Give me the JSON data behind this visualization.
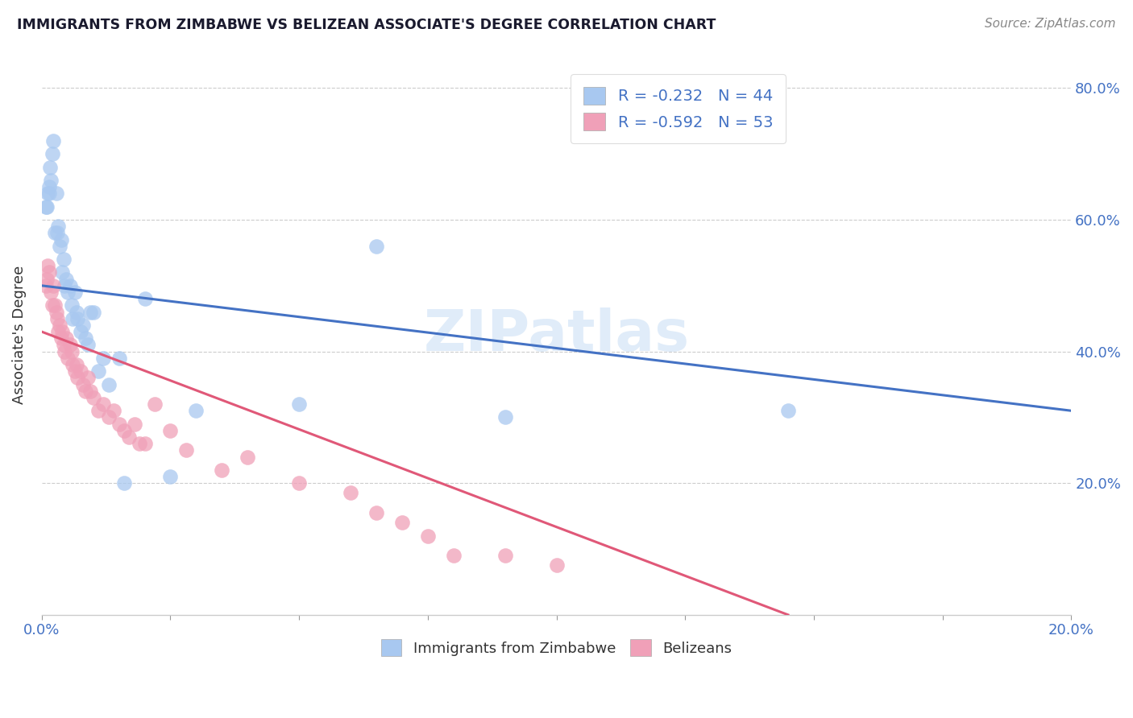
{
  "title": "IMMIGRANTS FROM ZIMBABWE VS BELIZEAN ASSOCIATE'S DEGREE CORRELATION CHART",
  "source": "Source: ZipAtlas.com",
  "ylabel": "Associate's Degree",
  "legend_blue_r": "R = -0.232",
  "legend_blue_n": "N = 44",
  "legend_pink_r": "R = -0.592",
  "legend_pink_n": "N = 53",
  "legend_blue_label": "Immigrants from Zimbabwe",
  "legend_pink_label": "Belizeans",
  "blue_color": "#a8c8f0",
  "pink_color": "#f0a0b8",
  "blue_line_color": "#4472c4",
  "pink_line_color": "#e05878",
  "watermark": "ZIPatlas",
  "blue_scatter_x": [
    0.0008,
    0.001,
    0.0012,
    0.0014,
    0.0015,
    0.0016,
    0.0018,
    0.002,
    0.0022,
    0.0025,
    0.0028,
    0.003,
    0.0032,
    0.0035,
    0.0038,
    0.004,
    0.0042,
    0.0045,
    0.0048,
    0.005,
    0.0055,
    0.0058,
    0.006,
    0.0065,
    0.0068,
    0.007,
    0.0075,
    0.008,
    0.0085,
    0.009,
    0.0095,
    0.01,
    0.011,
    0.012,
    0.013,
    0.015,
    0.016,
    0.02,
    0.025,
    0.03,
    0.05,
    0.065,
    0.09,
    0.145
  ],
  "blue_scatter_y": [
    0.62,
    0.62,
    0.64,
    0.65,
    0.64,
    0.68,
    0.66,
    0.7,
    0.72,
    0.58,
    0.64,
    0.58,
    0.59,
    0.56,
    0.57,
    0.52,
    0.54,
    0.5,
    0.51,
    0.49,
    0.5,
    0.47,
    0.45,
    0.49,
    0.46,
    0.45,
    0.43,
    0.44,
    0.42,
    0.41,
    0.46,
    0.46,
    0.37,
    0.39,
    0.35,
    0.39,
    0.2,
    0.48,
    0.21,
    0.31,
    0.32,
    0.56,
    0.3,
    0.31
  ],
  "pink_scatter_x": [
    0.0008,
    0.001,
    0.0012,
    0.0015,
    0.0018,
    0.002,
    0.0022,
    0.0025,
    0.0028,
    0.003,
    0.0032,
    0.0035,
    0.0038,
    0.004,
    0.0042,
    0.0045,
    0.0048,
    0.005,
    0.0055,
    0.0058,
    0.006,
    0.0065,
    0.0068,
    0.007,
    0.0075,
    0.008,
    0.0085,
    0.009,
    0.0095,
    0.01,
    0.011,
    0.012,
    0.013,
    0.014,
    0.015,
    0.016,
    0.017,
    0.018,
    0.019,
    0.02,
    0.022,
    0.025,
    0.028,
    0.035,
    0.04,
    0.05,
    0.06,
    0.065,
    0.07,
    0.075,
    0.08,
    0.09,
    0.1
  ],
  "pink_scatter_y": [
    0.5,
    0.51,
    0.53,
    0.52,
    0.49,
    0.47,
    0.5,
    0.47,
    0.46,
    0.45,
    0.43,
    0.44,
    0.42,
    0.43,
    0.41,
    0.4,
    0.42,
    0.39,
    0.41,
    0.4,
    0.38,
    0.37,
    0.38,
    0.36,
    0.37,
    0.35,
    0.34,
    0.36,
    0.34,
    0.33,
    0.31,
    0.32,
    0.3,
    0.31,
    0.29,
    0.28,
    0.27,
    0.29,
    0.26,
    0.26,
    0.32,
    0.28,
    0.25,
    0.22,
    0.24,
    0.2,
    0.185,
    0.155,
    0.14,
    0.12,
    0.09,
    0.09,
    0.075
  ],
  "blue_line_x": [
    0.0,
    0.2
  ],
  "blue_line_y": [
    0.5,
    0.31
  ],
  "pink_line_x": [
    0.0,
    0.145
  ],
  "pink_line_y": [
    0.43,
    0.0
  ],
  "xlim": [
    0.0,
    0.2
  ],
  "ylim": [
    0.0,
    0.85
  ],
  "yticks": [
    0.2,
    0.4,
    0.6,
    0.8
  ],
  "ytick_labels": [
    "20.0%",
    "40.0%",
    "60.0%",
    "80.0%"
  ],
  "xtick_left_label": "0.0%",
  "xtick_right_label": "20.0%",
  "background_color": "#ffffff",
  "grid_color": "#cccccc"
}
